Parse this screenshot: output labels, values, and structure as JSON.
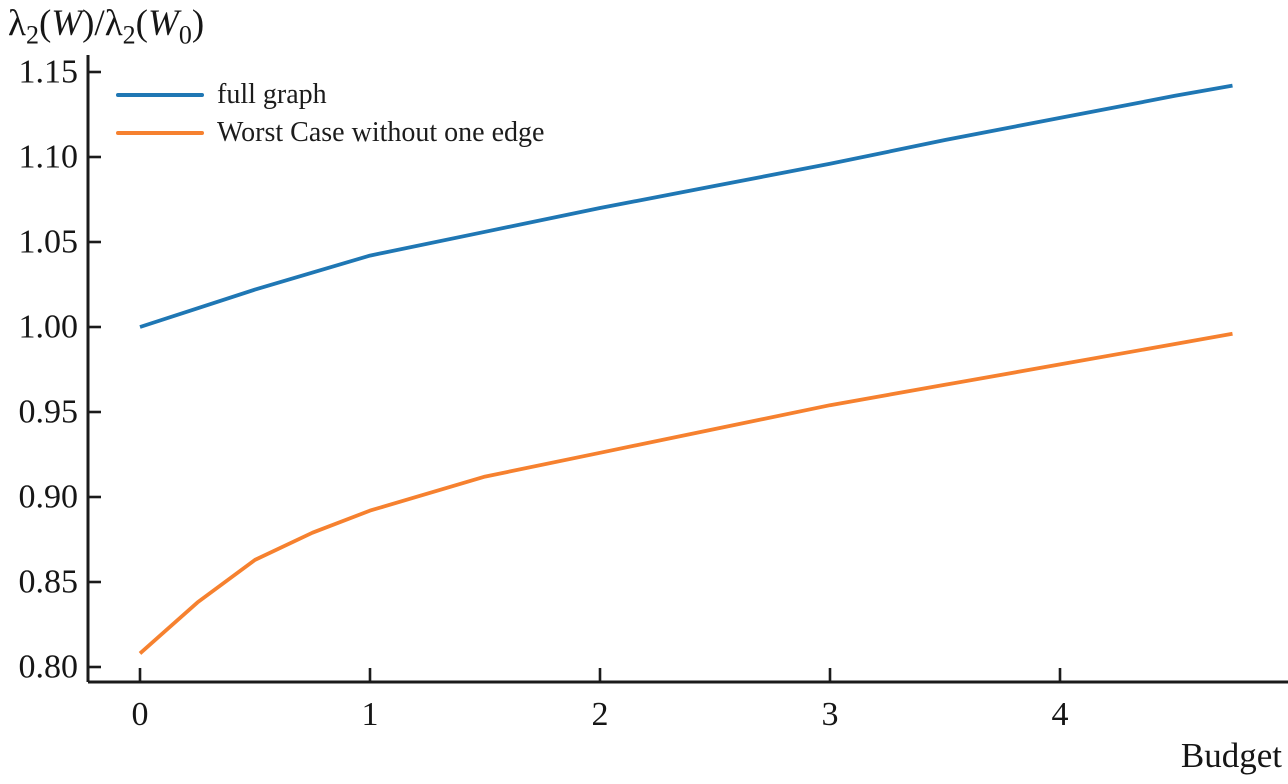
{
  "chart_data": {
    "type": "line",
    "title": "",
    "ylabel": "λ2(W)/λ2(W0)",
    "ylabel_parts": [
      {
        "t": "λ",
        "s": "n"
      },
      {
        "t": "2",
        "s": "s"
      },
      {
        "t": "(",
        "s": "n"
      },
      {
        "t": "W",
        "s": "i"
      },
      {
        "t": ")/λ",
        "s": "n"
      },
      {
        "t": "2",
        "s": "s"
      },
      {
        "t": "(",
        "s": "n"
      },
      {
        "t": "W",
        "s": "i"
      },
      {
        "t": "0",
        "s": "s"
      },
      {
        "t": ")",
        "s": "n"
      }
    ],
    "xlabel": "Budget",
    "x_ticks": [
      0,
      1,
      2,
      3,
      4
    ],
    "x_tick_labels": [
      "0",
      "1",
      "2",
      "3",
      "4"
    ],
    "y_ticks": [
      0.8,
      0.85,
      0.9,
      0.95,
      1.0,
      1.05,
      1.1,
      1.15
    ],
    "y_tick_labels": [
      "0.80",
      "0.85",
      "0.90",
      "0.95",
      "1.00",
      "1.05",
      "1.10",
      "1.15"
    ],
    "xlim": [
      -0.23,
      4.99
    ],
    "ylim": [
      0.79,
      1.16
    ],
    "grid": false,
    "legend_position": "upper left",
    "axis_color": "#1b1b1b",
    "series": [
      {
        "name": "full graph",
        "color": "#1f77b4",
        "x": [
          0,
          0.25,
          0.5,
          0.75,
          1,
          1.5,
          2,
          2.5,
          3,
          3.5,
          4,
          4.5,
          4.75
        ],
        "y": [
          1.0,
          1.011,
          1.022,
          1.032,
          1.042,
          1.056,
          1.07,
          1.083,
          1.096,
          1.11,
          1.123,
          1.136,
          1.142
        ]
      },
      {
        "name": "Worst Case without one edge",
        "color": "#f6812f",
        "x": [
          0,
          0.25,
          0.5,
          0.75,
          1,
          1.5,
          2,
          2.5,
          3,
          3.5,
          4,
          4.5,
          4.75
        ],
        "y": [
          0.808,
          0.838,
          0.863,
          0.879,
          0.892,
          0.912,
          0.926,
          0.94,
          0.954,
          0.966,
          0.978,
          0.99,
          0.996
        ]
      }
    ]
  }
}
